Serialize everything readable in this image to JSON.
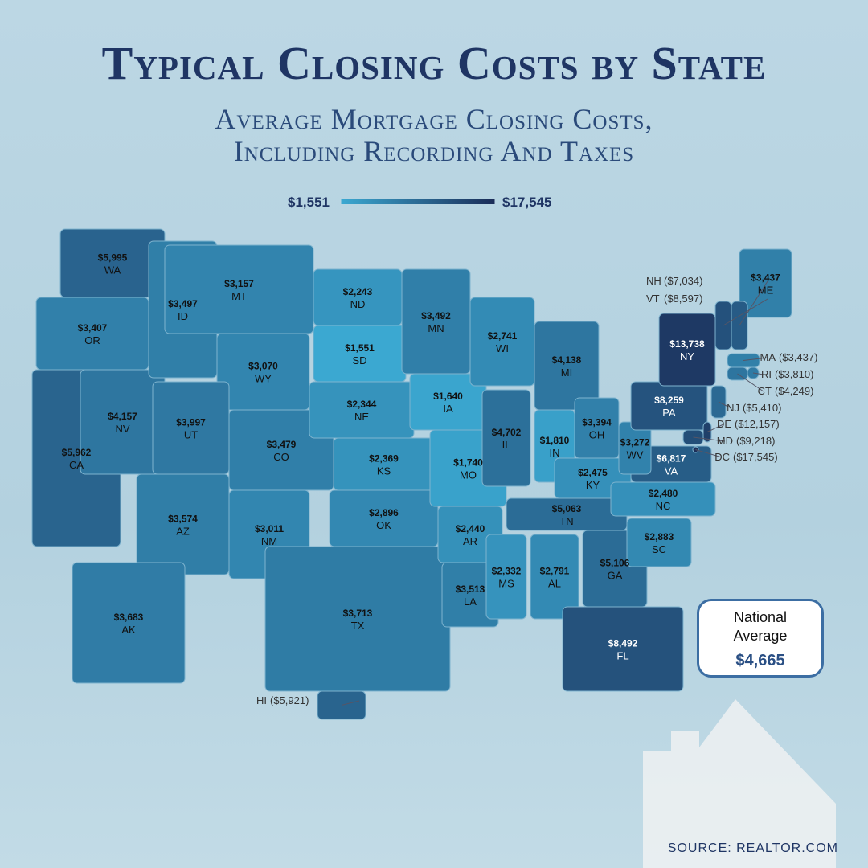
{
  "chart_data": {
    "type": "choropleth",
    "title": "Typical Closing Costs by State",
    "subtitle": "Average Mortgage Closing Costs, Including Recording And Taxes",
    "scale": "log",
    "legend": {
      "colors": [
        "#3ba8d1",
        "#1b2d58"
      ],
      "ticks": [
        {
          "value": 1551,
          "label": "$1,551"
        },
        {
          "value": 17545,
          "label": "$17,545"
        }
      ]
    },
    "categories": [
      "WA",
      "OR",
      "CA",
      "NV",
      "ID",
      "MT",
      "WY",
      "UT",
      "CO",
      "AZ",
      "NM",
      "ND",
      "SD",
      "NE",
      "KS",
      "OK",
      "TX",
      "MN",
      "IA",
      "MO",
      "AR",
      "LA",
      "WI",
      "IL",
      "MI",
      "IN",
      "OH",
      "KY",
      "TN",
      "MS",
      "AL",
      "GA",
      "FL",
      "SC",
      "NC",
      "VA",
      "WV",
      "PA",
      "NY",
      "ME",
      "AK",
      "HI",
      "NH",
      "VT",
      "MA",
      "RI",
      "CT",
      "NJ",
      "DE",
      "MD",
      "DC"
    ],
    "values": [
      5995,
      3407,
      5962,
      4157,
      3497,
      3157,
      3070,
      3997,
      3479,
      3574,
      3011,
      2243,
      1551,
      2344,
      2369,
      2896,
      3713,
      3492,
      1640,
      1740,
      2440,
      3513,
      2741,
      4702,
      4138,
      1810,
      3394,
      2475,
      5063,
      2332,
      2791,
      5106,
      8492,
      2883,
      2480,
      6817,
      3272,
      8259,
      13738,
      3437,
      3683,
      5921,
      7034,
      8597,
      3437,
      3810,
      4249,
      5410,
      12157,
      9218,
      17545
    ],
    "value_labels": [
      "$5,995",
      "$3,407",
      "$5,962",
      "$4,157",
      "$3,497",
      "$3,157",
      "$3,070",
      "$3,997",
      "$3,479",
      "$3,574",
      "$3,011",
      "$2,243",
      "$1,551",
      "$2,344",
      "$2,369",
      "$2,896",
      "$3,713",
      "$3,492",
      "$1,640",
      "$1,740",
      "$2,440",
      "$3,513",
      "$2,741",
      "$4,702",
      "$4,138",
      "$1,810",
      "$3,394",
      "$2,475",
      "$5,063",
      "$2,332",
      "$2,791",
      "$5,106",
      "$8,492",
      "$2,883",
      "$2,480",
      "$6,817",
      "$3,272",
      "$8,259",
      "$13,738",
      "$3,437",
      "$3,683",
      "($5,921)",
      "($7,034)",
      "($8,597)",
      "($3,437)",
      "($3,810)",
      "($4,249)",
      "($5,410)",
      "($12,157)",
      "($9,218)",
      "($17,545)"
    ],
    "national_average": {
      "label": "National Average",
      "value": 4665,
      "value_label": "$4,665"
    },
    "source": "SOURCE: REALTOR.COM"
  }
}
